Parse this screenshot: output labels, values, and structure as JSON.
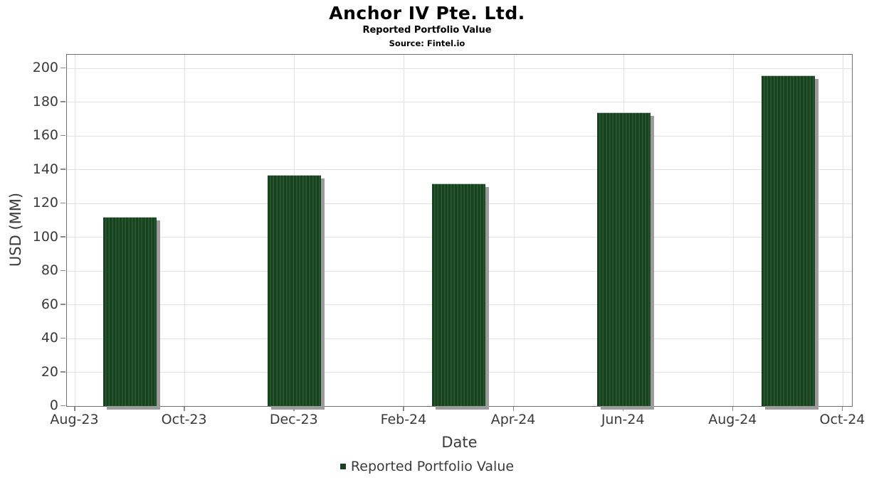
{
  "header": {
    "title": "Anchor IV Pte. Ltd.",
    "subtitle": "Reported Portfolio Value",
    "source_note": "Source: Fintel.io"
  },
  "chart_data": {
    "type": "bar",
    "title": "Anchor IV Pte. Ltd.",
    "subtitle": "Reported Portfolio Value",
    "source_note": "Source: Fintel.io",
    "xlabel": "Date",
    "ylabel": "USD (MM)",
    "ylim": [
      0,
      200
    ],
    "y_ticks": [
      0,
      20,
      40,
      60,
      80,
      100,
      120,
      140,
      160,
      180,
      200
    ],
    "x_axis": {
      "tick_labels": [
        "Aug-23",
        "Oct-23",
        "Dec-23",
        "Feb-24",
        "Apr-24",
        "Jun-24",
        "Aug-24",
        "Oct-24"
      ],
      "tick_month_index": [
        0,
        2,
        4,
        6,
        8,
        10,
        12,
        14
      ]
    },
    "grid": true,
    "legend_position": "bottom",
    "series": [
      {
        "name": "Reported Portfolio Value",
        "points": [
          {
            "date": "Sep-23",
            "month_index": 1,
            "value": 112
          },
          {
            "date": "Dec-23",
            "month_index": 4,
            "value": 137
          },
          {
            "date": "Mar-24",
            "month_index": 7,
            "value": 132
          },
          {
            "date": "Jun-24",
            "month_index": 10,
            "value": 174
          },
          {
            "date": "Sep-24",
            "month_index": 13,
            "value": 196
          }
        ]
      }
    ],
    "colors": {
      "bar_base": "#17421e",
      "bar_stripe": "#2d5a34",
      "bar_top_edge": "#c3ccc3",
      "bar_shadow": "#9b9b9b",
      "gridline": "#e2e2e2",
      "frame": "#6f6f6f",
      "tick": "#8a8a8a",
      "axis_text": "#3a3a3a",
      "title_text": "#000000"
    }
  },
  "legend": {
    "label": "Reported Portfolio Value"
  }
}
